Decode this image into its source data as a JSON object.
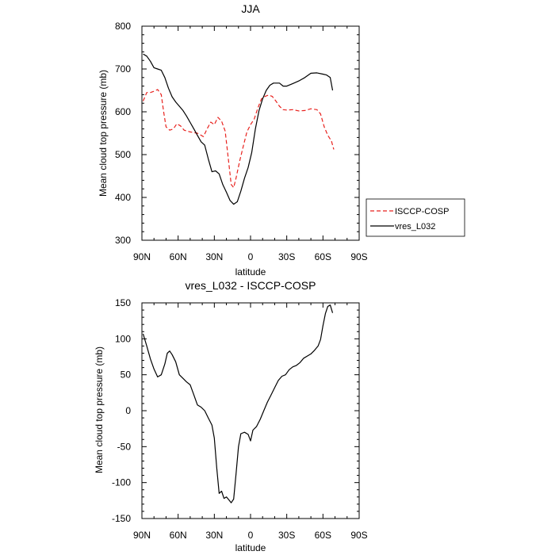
{
  "chart_data": [
    {
      "type": "line",
      "title": "JJA",
      "xlabel": "latitude",
      "ylabel": "Mean cloud top pressure (mb)",
      "xlim": [
        90,
        -90
      ],
      "ylim": [
        300,
        800
      ],
      "x_ticks": [
        90,
        60,
        30,
        0,
        -30,
        -60,
        -90
      ],
      "x_tick_labels": [
        "90N",
        "60N",
        "30N",
        "0",
        "30S",
        "60S",
        "90S"
      ],
      "y_ticks": [
        300,
        400,
        500,
        600,
        700,
        800
      ],
      "y_tick_labels": [
        "300",
        "400",
        "500",
        "600",
        "700",
        "800"
      ],
      "legend_position": "outside-right",
      "series": [
        {
          "name": "ISCCP-COSP",
          "color": "#e8221e",
          "dash": "dashed",
          "points": [
            [
              89,
              625
            ],
            [
              86,
              645
            ],
            [
              83,
              645
            ],
            [
              80,
              648
            ],
            [
              77,
              652
            ],
            [
              74,
              640
            ],
            [
              72,
              600
            ],
            [
              70,
              565
            ],
            [
              67,
              557
            ],
            [
              64,
              560
            ],
            [
              61,
              572
            ],
            [
              58,
              567
            ],
            [
              55,
              557
            ],
            [
              50,
              553
            ],
            [
              44,
              550
            ],
            [
              39,
              542
            ],
            [
              36,
              560
            ],
            [
              33,
              576
            ],
            [
              30,
              570
            ],
            [
              27,
              587
            ],
            [
              24,
              578
            ],
            [
              21,
              555
            ],
            [
              18,
              480
            ],
            [
              16,
              430
            ],
            [
              14,
              423
            ],
            [
              12,
              445
            ],
            [
              9,
              485
            ],
            [
              6,
              520
            ],
            [
              3,
              553
            ],
            [
              0,
              570
            ],
            [
              -3,
              583
            ],
            [
              -6,
              608
            ],
            [
              -9,
              630
            ],
            [
              -12,
              636
            ],
            [
              -15,
              639
            ],
            [
              -18,
              636
            ],
            [
              -21,
              625
            ],
            [
              -24,
              613
            ],
            [
              -27,
              605
            ],
            [
              -30,
              604
            ],
            [
              -35,
              605
            ],
            [
              -40,
              602
            ],
            [
              -45,
              603
            ],
            [
              -50,
              607
            ],
            [
              -55,
              605
            ],
            [
              -58,
              595
            ],
            [
              -61,
              565
            ],
            [
              -64,
              545
            ],
            [
              -67,
              532
            ],
            [
              -69,
              512
            ]
          ]
        },
        {
          "name": "vres_L032",
          "color": "#000000",
          "dash": "solid",
          "points": [
            [
              89,
              735
            ],
            [
              86,
              730
            ],
            [
              83,
              718
            ],
            [
              80,
              703
            ],
            [
              77,
              700
            ],
            [
              74,
              697
            ],
            [
              71,
              680
            ],
            [
              68,
              655
            ],
            [
              65,
              635
            ],
            [
              62,
              623
            ],
            [
              59,
              613
            ],
            [
              56,
              603
            ],
            [
              53,
              590
            ],
            [
              50,
              575
            ],
            [
              47,
              560
            ],
            [
              44,
              545
            ],
            [
              41,
              530
            ],
            [
              38,
              522
            ],
            [
              35,
              490
            ],
            [
              32,
              460
            ],
            [
              29,
              462
            ],
            [
              26,
              455
            ],
            [
              23,
              430
            ],
            [
              20,
              412
            ],
            [
              17,
              393
            ],
            [
              14,
              384
            ],
            [
              11,
              390
            ],
            [
              8,
              415
            ],
            [
              5,
              445
            ],
            [
              2,
              470
            ],
            [
              -1,
              505
            ],
            [
              -4,
              560
            ],
            [
              -7,
              603
            ],
            [
              -10,
              630
            ],
            [
              -13,
              650
            ],
            [
              -16,
              662
            ],
            [
              -19,
              667
            ],
            [
              -24,
              667
            ],
            [
              -27,
              660
            ],
            [
              -30,
              660
            ],
            [
              -35,
              666
            ],
            [
              -40,
              672
            ],
            [
              -45,
              680
            ],
            [
              -50,
              690
            ],
            [
              -55,
              691
            ],
            [
              -60,
              688
            ],
            [
              -63,
              686
            ],
            [
              -66,
              680
            ],
            [
              -68,
              650
            ]
          ]
        }
      ]
    },
    {
      "type": "line",
      "title": "vres_L032 - ISCCP-COSP",
      "xlabel": "latitude",
      "ylabel": "Mean cloud top pressure (mb)",
      "xlim": [
        90,
        -90
      ],
      "ylim": [
        -150,
        150
      ],
      "x_ticks": [
        90,
        60,
        30,
        0,
        -30,
        -60,
        -90
      ],
      "x_tick_labels": [
        "90N",
        "60N",
        "30N",
        "0",
        "30S",
        "60S",
        "90S"
      ],
      "y_ticks": [
        -150,
        -100,
        -50,
        0,
        50,
        100,
        150
      ],
      "y_tick_labels": [
        "-150",
        "-100",
        "-50",
        "0",
        "50",
        "100",
        "150"
      ],
      "series": [
        {
          "color": "#000000",
          "dash": "solid",
          "points": [
            [
              89,
              107
            ],
            [
              86,
              90
            ],
            [
              83,
              72
            ],
            [
              80,
              58
            ],
            [
              77,
              47
            ],
            [
              74,
              50
            ],
            [
              71,
              65
            ],
            [
              69,
              80
            ],
            [
              67,
              83
            ],
            [
              65,
              78
            ],
            [
              62,
              68
            ],
            [
              59,
              50
            ],
            [
              56,
              45
            ],
            [
              53,
              40
            ],
            [
              50,
              36
            ],
            [
              47,
              22
            ],
            [
              44,
              8
            ],
            [
              41,
              5
            ],
            [
              38,
              0
            ],
            [
              35,
              -10
            ],
            [
              32,
              -20
            ],
            [
              30,
              -38
            ],
            [
              28,
              -80
            ],
            [
              26,
              -115
            ],
            [
              24,
              -112
            ],
            [
              22,
              -122
            ],
            [
              20,
              -120
            ],
            [
              18,
              -124
            ],
            [
              16,
              -128
            ],
            [
              14,
              -123
            ],
            [
              12,
              -88
            ],
            [
              10,
              -50
            ],
            [
              8,
              -32
            ],
            [
              5,
              -30
            ],
            [
              2,
              -33
            ],
            [
              0,
              -42
            ],
            [
              -2,
              -27
            ],
            [
              -5,
              -22
            ],
            [
              -8,
              -12
            ],
            [
              -11,
              0
            ],
            [
              -14,
              12
            ],
            [
              -17,
              22
            ],
            [
              -20,
              32
            ],
            [
              -23,
              42
            ],
            [
              -26,
              48
            ],
            [
              -29,
              50
            ],
            [
              -32,
              57
            ],
            [
              -35,
              61
            ],
            [
              -38,
              63
            ],
            [
              -41,
              67
            ],
            [
              -44,
              73
            ],
            [
              -47,
              76
            ],
            [
              -50,
              79
            ],
            [
              -53,
              84
            ],
            [
              -56,
              90
            ],
            [
              -58,
              99
            ],
            [
              -60,
              118
            ],
            [
              -62,
              135
            ],
            [
              -64,
              145
            ],
            [
              -66,
              147
            ],
            [
              -68,
              136
            ]
          ]
        }
      ]
    }
  ]
}
